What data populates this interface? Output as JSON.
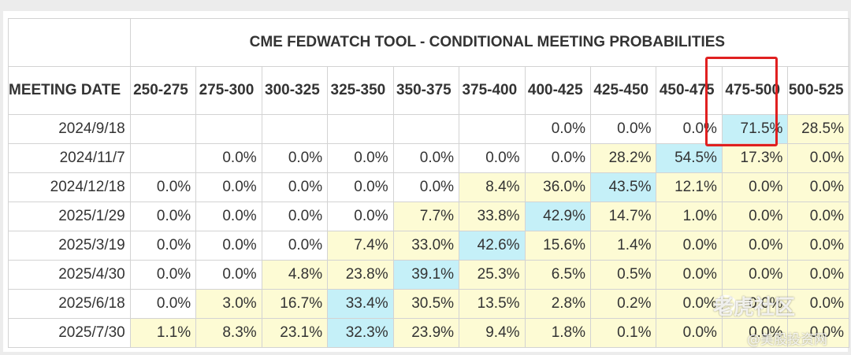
{
  "table": {
    "title": "CME FEDWATCH TOOL - CONDITIONAL MEETING PROBABILITIES",
    "date_header": "MEETING DATE",
    "ranges": [
      "250-275",
      "275-300",
      "300-325",
      "325-350",
      "350-375",
      "375-400",
      "400-425",
      "425-450",
      "450-475",
      "475-500",
      "500-525"
    ],
    "rows": [
      {
        "date": "2024/9/18",
        "values": [
          "",
          "",
          "",
          "",
          "",
          "",
          "0.0%",
          "0.0%",
          "0.0%",
          "71.5%",
          "28.5%"
        ]
      },
      {
        "date": "2024/11/7",
        "values": [
          "",
          "0.0%",
          "0.0%",
          "0.0%",
          "0.0%",
          "0.0%",
          "0.0%",
          "28.2%",
          "54.5%",
          "17.3%",
          "0.0%"
        ]
      },
      {
        "date": "2024/12/18",
        "values": [
          "0.0%",
          "0.0%",
          "0.0%",
          "0.0%",
          "0.0%",
          "8.4%",
          "36.0%",
          "43.5%",
          "12.1%",
          "0.0%",
          "0.0%"
        ]
      },
      {
        "date": "2025/1/29",
        "values": [
          "0.0%",
          "0.0%",
          "0.0%",
          "0.0%",
          "7.7%",
          "33.8%",
          "42.9%",
          "14.7%",
          "1.0%",
          "0.0%",
          "0.0%"
        ]
      },
      {
        "date": "2025/3/19",
        "values": [
          "0.0%",
          "0.0%",
          "0.0%",
          "7.4%",
          "33.0%",
          "42.6%",
          "15.6%",
          "1.4%",
          "0.0%",
          "0.0%",
          "0.0%"
        ]
      },
      {
        "date": "2025/4/30",
        "values": [
          "0.0%",
          "0.0%",
          "4.8%",
          "23.8%",
          "39.1%",
          "25.3%",
          "6.5%",
          "0.5%",
          "0.0%",
          "0.0%",
          "0.0%"
        ]
      },
      {
        "date": "2025/6/18",
        "values": [
          "0.0%",
          "3.0%",
          "16.7%",
          "33.4%",
          "30.5%",
          "13.5%",
          "2.8%",
          "0.2%",
          "0.0%",
          "0.0%",
          "0.0%"
        ]
      },
      {
        "date": "2025/7/30",
        "values": [
          "1.1%",
          "8.3%",
          "23.1%",
          "32.3%",
          "23.9%",
          "9.4%",
          "1.8%",
          "0.1%",
          "0.0%",
          "0.0%",
          "0.0%"
        ]
      }
    ],
    "highlighted_range": "475-500"
  },
  "watermark": {
    "main": "老虎社区",
    "sub": "@美股投资网"
  },
  "colors": {
    "max_cell": "#c5f0f8",
    "nonzero_cell": "#fdfbd4",
    "highlight_border": "#e02020"
  }
}
